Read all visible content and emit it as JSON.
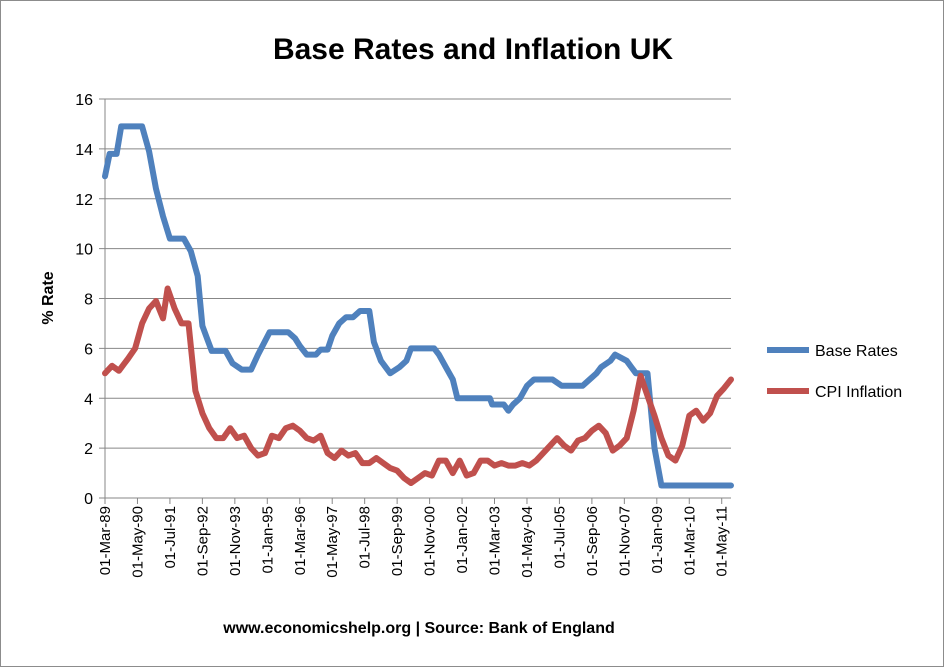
{
  "chart_data": {
    "type": "line",
    "title": "Base Rates and Inflation UK",
    "ylabel": "% Rate",
    "footer": "www.economicshelp.org | Source: Bank of England",
    "ylim": [
      0,
      16
    ],
    "yticks": [
      0,
      2,
      4,
      6,
      8,
      10,
      12,
      14,
      16
    ],
    "grid": true,
    "legend_position": "right",
    "x_tick_labels": [
      "01-Mar-89",
      "01-May-90",
      "01-Jul-91",
      "01-Sep-92",
      "01-Nov-93",
      "01-Jan-95",
      "01-Mar-96",
      "01-May-97",
      "01-Jul-98",
      "01-Sep-99",
      "01-Nov-00",
      "01-Jan-02",
      "01-Mar-03",
      "01-May-04",
      "01-Jul-05",
      "01-Sep-06",
      "01-Nov-07",
      "01-Jan-09",
      "01-Mar-10",
      "01-May-11"
    ],
    "x_range": [
      "1989-03",
      "2011-09"
    ],
    "series": [
      {
        "name": "Base Rates",
        "color": "#4f81bd",
        "points": [
          [
            "1989-03",
            12.9
          ],
          [
            "1989-05",
            13.8
          ],
          [
            "1989-08",
            13.8
          ],
          [
            "1989-10",
            14.9
          ],
          [
            "1990-07",
            14.9
          ],
          [
            "1990-10",
            13.9
          ],
          [
            "1991-01",
            12.4
          ],
          [
            "1991-04",
            11.3
          ],
          [
            "1991-07",
            10.4
          ],
          [
            "1991-10",
            10.4
          ],
          [
            "1992-01",
            10.4
          ],
          [
            "1992-04",
            9.9
          ],
          [
            "1992-07",
            8.9
          ],
          [
            "1992-09",
            6.9
          ],
          [
            "1992-11",
            6.4
          ],
          [
            "1993-01",
            5.9
          ],
          [
            "1993-07",
            5.9
          ],
          [
            "1993-10",
            5.4
          ],
          [
            "1994-02",
            5.15
          ],
          [
            "1994-06",
            5.15
          ],
          [
            "1994-09",
            5.75
          ],
          [
            "1995-02",
            6.65
          ],
          [
            "1995-06",
            6.65
          ],
          [
            "1995-10",
            6.65
          ],
          [
            "1996-01",
            6.4
          ],
          [
            "1996-03",
            6.1
          ],
          [
            "1996-06",
            5.75
          ],
          [
            "1996-10",
            5.75
          ],
          [
            "1996-12",
            5.95
          ],
          [
            "1997-03",
            5.95
          ],
          [
            "1997-05",
            6.5
          ],
          [
            "1997-08",
            7.0
          ],
          [
            "1997-11",
            7.25
          ],
          [
            "1998-02",
            7.25
          ],
          [
            "1998-05",
            7.5
          ],
          [
            "1998-09",
            7.5
          ],
          [
            "1998-11",
            6.25
          ],
          [
            "1999-02",
            5.5
          ],
          [
            "1999-06",
            5.0
          ],
          [
            "1999-10",
            5.25
          ],
          [
            "2000-01",
            5.5
          ],
          [
            "2000-03",
            6.0
          ],
          [
            "2000-06",
            6.0
          ],
          [
            "2000-10",
            6.0
          ],
          [
            "2001-01",
            6.0
          ],
          [
            "2001-03",
            5.75
          ],
          [
            "2001-06",
            5.25
          ],
          [
            "2001-09",
            4.75
          ],
          [
            "2001-11",
            4.0
          ],
          [
            "2002-03",
            4.0
          ],
          [
            "2002-07",
            4.0
          ],
          [
            "2003-01",
            4.0
          ],
          [
            "2003-02",
            3.75
          ],
          [
            "2003-07",
            3.75
          ],
          [
            "2003-09",
            3.5
          ],
          [
            "2003-11",
            3.75
          ],
          [
            "2004-02",
            4.0
          ],
          [
            "2004-05",
            4.5
          ],
          [
            "2004-08",
            4.75
          ],
          [
            "2005-01",
            4.75
          ],
          [
            "2005-04",
            4.75
          ],
          [
            "2005-08",
            4.5
          ],
          [
            "2006-01",
            4.5
          ],
          [
            "2006-05",
            4.5
          ],
          [
            "2006-08",
            4.75
          ],
          [
            "2006-11",
            5.0
          ],
          [
            "2007-01",
            5.25
          ],
          [
            "2007-05",
            5.5
          ],
          [
            "2007-07",
            5.75
          ],
          [
            "2007-12",
            5.5
          ],
          [
            "2008-02",
            5.25
          ],
          [
            "2008-04",
            5.0
          ],
          [
            "2008-09",
            5.0
          ],
          [
            "2008-11",
            3.0
          ],
          [
            "2008-12",
            2.0
          ],
          [
            "2009-02",
            1.0
          ],
          [
            "2009-03",
            0.5
          ],
          [
            "2010-06",
            0.5
          ],
          [
            "2011-09",
            0.5
          ]
        ]
      },
      {
        "name": "CPI Inflation",
        "color": "#c0504d",
        "points": [
          [
            "1989-03",
            5.0
          ],
          [
            "1989-06",
            5.3
          ],
          [
            "1989-09",
            5.1
          ],
          [
            "1990-01",
            5.6
          ],
          [
            "1990-04",
            6.0
          ],
          [
            "1990-07",
            7.0
          ],
          [
            "1990-10",
            7.6
          ],
          [
            "1991-01",
            7.9
          ],
          [
            "1991-04",
            7.2
          ],
          [
            "1991-06",
            8.4
          ],
          [
            "1991-09",
            7.6
          ],
          [
            "1991-12",
            7.0
          ],
          [
            "1992-03",
            7.0
          ],
          [
            "1992-06",
            4.3
          ],
          [
            "1992-09",
            3.4
          ],
          [
            "1992-12",
            2.8
          ],
          [
            "1993-03",
            2.4
          ],
          [
            "1993-06",
            2.4
          ],
          [
            "1993-09",
            2.8
          ],
          [
            "1993-12",
            2.4
          ],
          [
            "1994-03",
            2.5
          ],
          [
            "1994-06",
            2.0
          ],
          [
            "1994-09",
            1.7
          ],
          [
            "1994-12",
            1.8
          ],
          [
            "1995-03",
            2.5
          ],
          [
            "1995-06",
            2.4
          ],
          [
            "1995-09",
            2.8
          ],
          [
            "1995-12",
            2.9
          ],
          [
            "1996-03",
            2.7
          ],
          [
            "1996-06",
            2.4
          ],
          [
            "1996-09",
            2.3
          ],
          [
            "1996-12",
            2.5
          ],
          [
            "1997-03",
            1.8
          ],
          [
            "1997-06",
            1.6
          ],
          [
            "1997-09",
            1.9
          ],
          [
            "1997-12",
            1.7
          ],
          [
            "1998-03",
            1.8
          ],
          [
            "1998-06",
            1.4
          ],
          [
            "1998-09",
            1.4
          ],
          [
            "1998-12",
            1.6
          ],
          [
            "1999-03",
            1.4
          ],
          [
            "1999-06",
            1.2
          ],
          [
            "1999-09",
            1.1
          ],
          [
            "1999-12",
            0.8
          ],
          [
            "2000-03",
            0.6
          ],
          [
            "2000-06",
            0.8
          ],
          [
            "2000-09",
            1.0
          ],
          [
            "2000-12",
            0.9
          ],
          [
            "2001-03",
            1.5
          ],
          [
            "2001-06",
            1.5
          ],
          [
            "2001-09",
            1.0
          ],
          [
            "2001-12",
            1.5
          ],
          [
            "2002-03",
            0.9
          ],
          [
            "2002-06",
            1.0
          ],
          [
            "2002-09",
            1.5
          ],
          [
            "2002-12",
            1.5
          ],
          [
            "2003-03",
            1.3
          ],
          [
            "2003-06",
            1.4
          ],
          [
            "2003-09",
            1.3
          ],
          [
            "2003-12",
            1.3
          ],
          [
            "2004-03",
            1.4
          ],
          [
            "2004-06",
            1.3
          ],
          [
            "2004-09",
            1.5
          ],
          [
            "2004-12",
            1.8
          ],
          [
            "2005-03",
            2.1
          ],
          [
            "2005-06",
            2.4
          ],
          [
            "2005-09",
            2.1
          ],
          [
            "2005-12",
            1.9
          ],
          [
            "2006-03",
            2.3
          ],
          [
            "2006-06",
            2.4
          ],
          [
            "2006-09",
            2.7
          ],
          [
            "2006-12",
            2.9
          ],
          [
            "2007-03",
            2.6
          ],
          [
            "2007-06",
            1.9
          ],
          [
            "2007-09",
            2.1
          ],
          [
            "2007-12",
            2.4
          ],
          [
            "2008-03",
            3.5
          ],
          [
            "2008-06",
            4.9
          ],
          [
            "2008-09",
            4.1
          ],
          [
            "2008-12",
            3.3
          ],
          [
            "2009-03",
            2.4
          ],
          [
            "2009-06",
            1.7
          ],
          [
            "2009-09",
            1.5
          ],
          [
            "2009-12",
            2.1
          ],
          [
            "2010-03",
            3.3
          ],
          [
            "2010-06",
            3.5
          ],
          [
            "2010-09",
            3.1
          ],
          [
            "2010-12",
            3.4
          ],
          [
            "2011-03",
            4.1
          ],
          [
            "2011-06",
            4.4
          ],
          [
            "2011-09",
            4.75
          ]
        ]
      }
    ]
  }
}
